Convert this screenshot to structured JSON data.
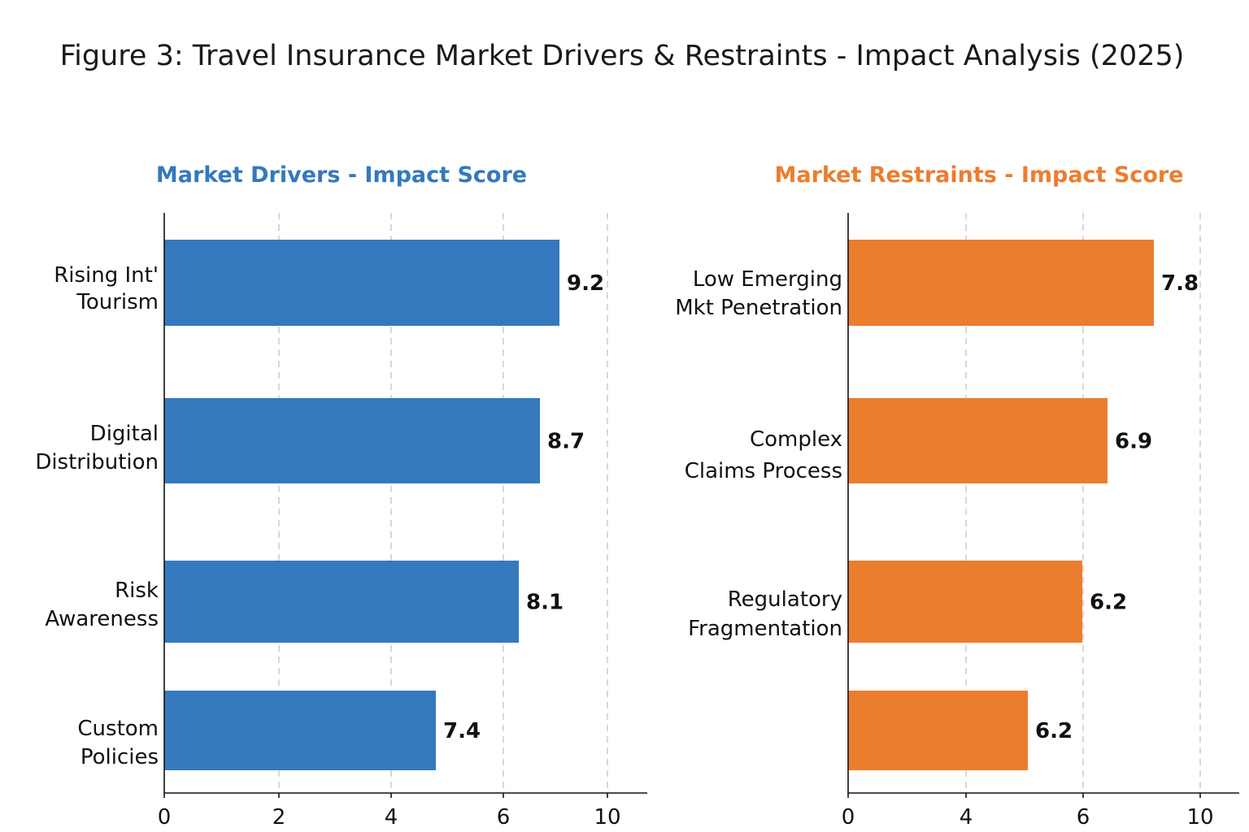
{
  "figure_title": "Figure 3: Travel Insurance Market Drivers & Restraints - Impact Analysis (2025)",
  "colors": {
    "drivers": "#3479bd",
    "restraints": "#eb7d2f"
  },
  "chart_data": [
    {
      "type": "bar",
      "orientation": "horizontal",
      "title": "Market Drivers - Impact Score",
      "categories": [
        [
          "Rising Int'",
          "Tourism"
        ],
        [
          "Digital",
          "Distribution"
        ],
        [
          "Risk",
          "Awareness"
        ],
        [
          "Custom",
          "Policies"
        ]
      ],
      "values": [
        9.2,
        8.7,
        8.1,
        7.4
      ],
      "data_labels": [
        "9.2",
        "8.7",
        "8.1",
        "7.4"
      ],
      "xticks": [
        "0",
        "2",
        "4",
        "6",
        "10"
      ],
      "xlabel": "",
      "ylabel": "",
      "grid": true
    },
    {
      "type": "bar",
      "orientation": "horizontal",
      "title": "Market Restraints - Impact Score",
      "categories": [
        [
          "Low Emerging",
          "Mkt Penetration"
        ],
        [
          "Complex",
          "Claims Process"
        ],
        [
          "Regulatory",
          "Fragmentation"
        ],
        []
      ],
      "values": [
        7.8,
        6.9,
        6.2,
        6.2
      ],
      "data_labels": [
        "7.8",
        "6.9",
        "6.2",
        "6.2"
      ],
      "xticks": [
        "0",
        "4",
        "6",
        "10"
      ],
      "xlabel": "",
      "ylabel": "",
      "grid": true
    }
  ]
}
